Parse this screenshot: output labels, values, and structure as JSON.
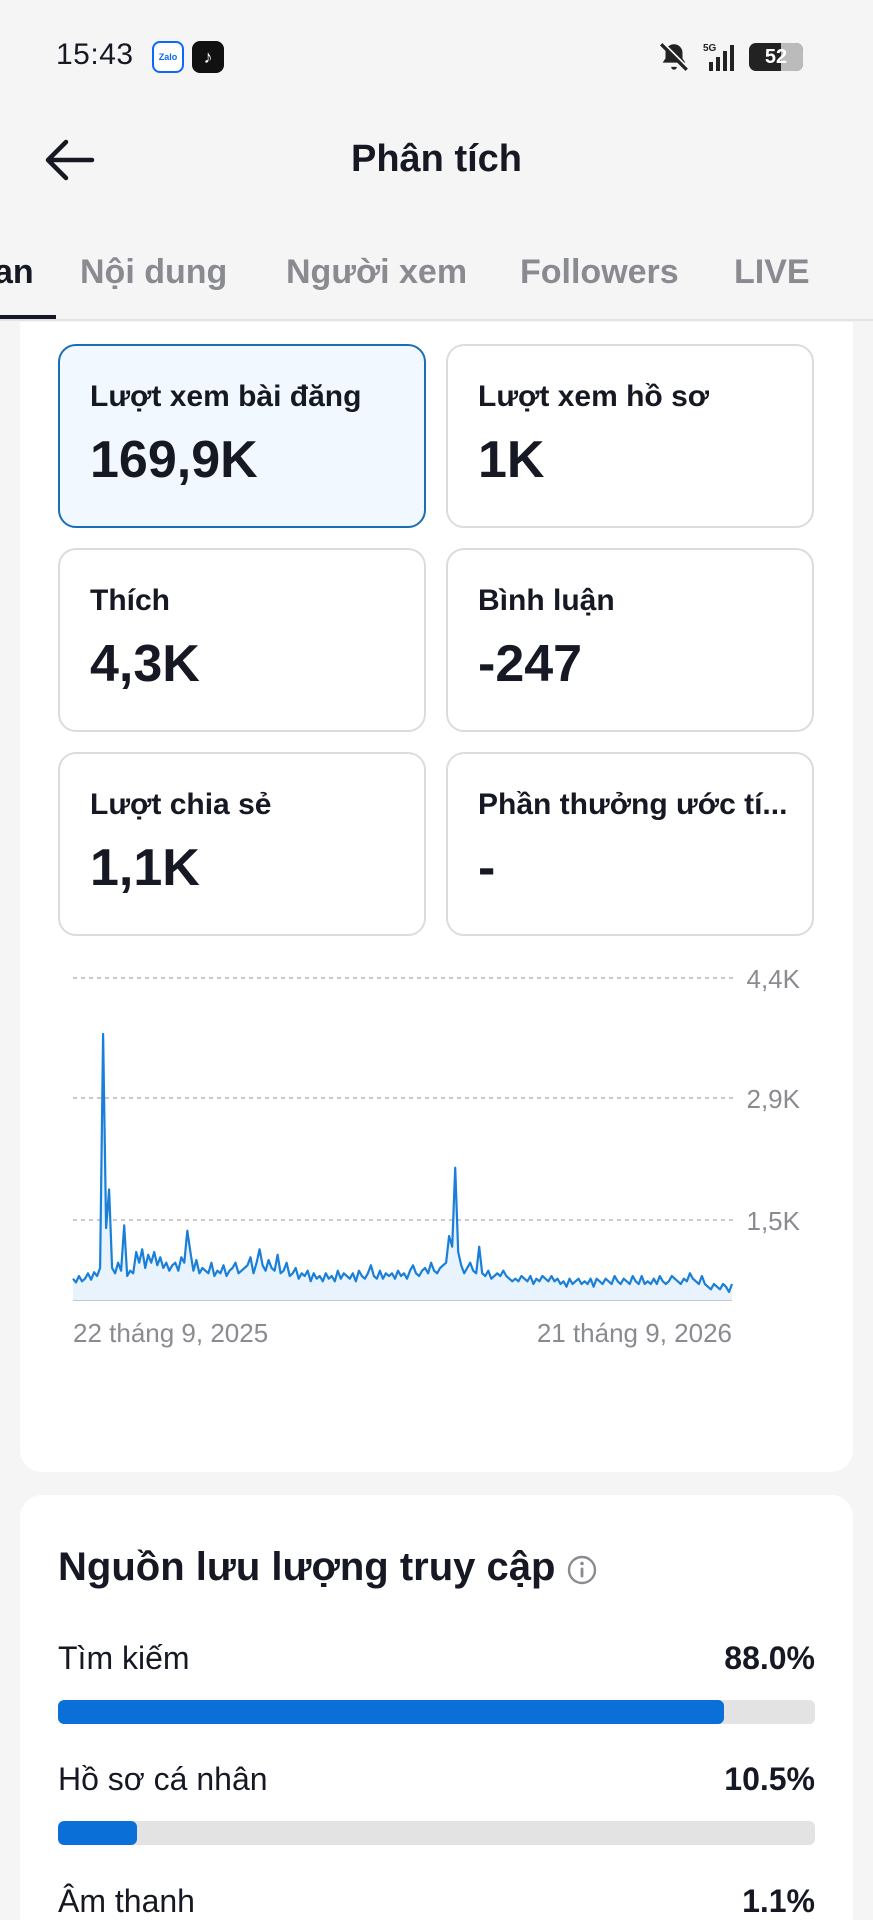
{
  "status": {
    "time": "15:43",
    "apps": [
      "Zalo",
      "TikTok"
    ],
    "network": "5G",
    "battery": "52"
  },
  "header": {
    "title": "Phân tích"
  },
  "tabs": [
    {
      "label": "an",
      "active": true
    },
    {
      "label": "Nội dung",
      "active": false
    },
    {
      "label": "Người xem",
      "active": false
    },
    {
      "label": "Followers",
      "active": false
    },
    {
      "label": "LIVE",
      "active": false
    }
  ],
  "metrics": [
    {
      "label": "Lượt xem bài đăng",
      "value": "169,9K",
      "selected": true
    },
    {
      "label": "Lượt xem hồ sơ",
      "value": "1K",
      "selected": false
    },
    {
      "label": "Thích",
      "value": "4,3K",
      "selected": false
    },
    {
      "label": "Bình luận",
      "value": "-247",
      "selected": false
    },
    {
      "label": "Lượt chia sẻ",
      "value": "1,1K",
      "selected": false
    },
    {
      "label": "Phần thưởng ước tí...",
      "value": "-",
      "selected": false
    }
  ],
  "chart_data": {
    "type": "area",
    "x_start_label": "22 tháng 9, 2025",
    "x_end_label": "21 tháng 9, 2026",
    "y_ticks": [
      {
        "value": 4400,
        "label": "4,4K"
      },
      {
        "value": 2900,
        "label": "2,9K"
      },
      {
        "value": 1500,
        "label": "1,5K"
      }
    ],
    "ylim": [
      0,
      4400
    ],
    "grid": true,
    "color": "#1a7fd8",
    "values": [
      400,
      330,
      450,
      350,
      400,
      500,
      380,
      520,
      450,
      600,
      3700,
      1350,
      1850,
      600,
      500,
      700,
      550,
      1400,
      450,
      550,
      500,
      900,
      700,
      950,
      600,
      850,
      700,
      900,
      650,
      800,
      600,
      700,
      550,
      650,
      700,
      550,
      800,
      700,
      1300,
      900,
      550,
      750,
      500,
      600,
      550,
      500,
      700,
      450,
      550,
      500,
      650,
      450,
      550,
      600,
      700,
      500,
      550,
      600,
      650,
      800,
      500,
      700,
      950,
      650,
      550,
      750,
      600,
      550,
      850,
      500,
      550,
      700,
      450,
      500,
      600,
      400,
      500,
      450,
      550,
      350,
      500,
      400,
      450,
      350,
      500,
      400,
      450,
      350,
      550,
      400,
      500,
      450,
      400,
      500,
      350,
      550,
      450,
      400,
      500,
      650,
      450,
      400,
      550,
      400,
      500,
      450,
      500,
      400,
      550,
      450,
      500,
      400,
      550,
      650,
      500,
      450,
      550,
      600,
      500,
      700,
      550,
      500,
      600,
      650,
      700,
      1200,
      1000,
      2100,
      900,
      650,
      500,
      600,
      700,
      550,
      500,
      1000,
      500,
      450,
      550,
      400,
      450,
      500,
      450,
      550,
      450,
      400,
      350,
      400,
      350,
      450,
      400,
      350,
      450,
      300,
      400,
      350,
      450,
      400,
      350,
      450,
      350,
      400,
      300,
      350,
      250,
      400,
      300,
      350,
      400,
      300,
      350,
      300,
      400,
      250,
      400,
      350,
      300,
      400,
      350,
      300,
      450,
      350,
      300,
      400,
      350,
      300,
      450,
      350,
      300,
      450,
      300,
      350,
      300,
      400,
      300,
      450,
      350,
      300,
      350,
      450,
      400,
      350,
      300,
      400,
      350,
      500,
      400,
      350,
      300,
      450,
      300,
      250,
      200,
      300,
      250,
      200,
      300,
      250,
      150,
      300
    ]
  },
  "traffic": {
    "title": "Nguồn lưu lượng truy cập",
    "info_icon": "info-icon",
    "sources": [
      {
        "label": "Tìm kiếm",
        "pct": "88.0%",
        "value": 88.0
      },
      {
        "label": "Hồ sơ cá nhân",
        "pct": "10.5%",
        "value": 10.5
      },
      {
        "label": "Âm thanh",
        "pct": "1.1%",
        "value": 1.1
      }
    ]
  }
}
